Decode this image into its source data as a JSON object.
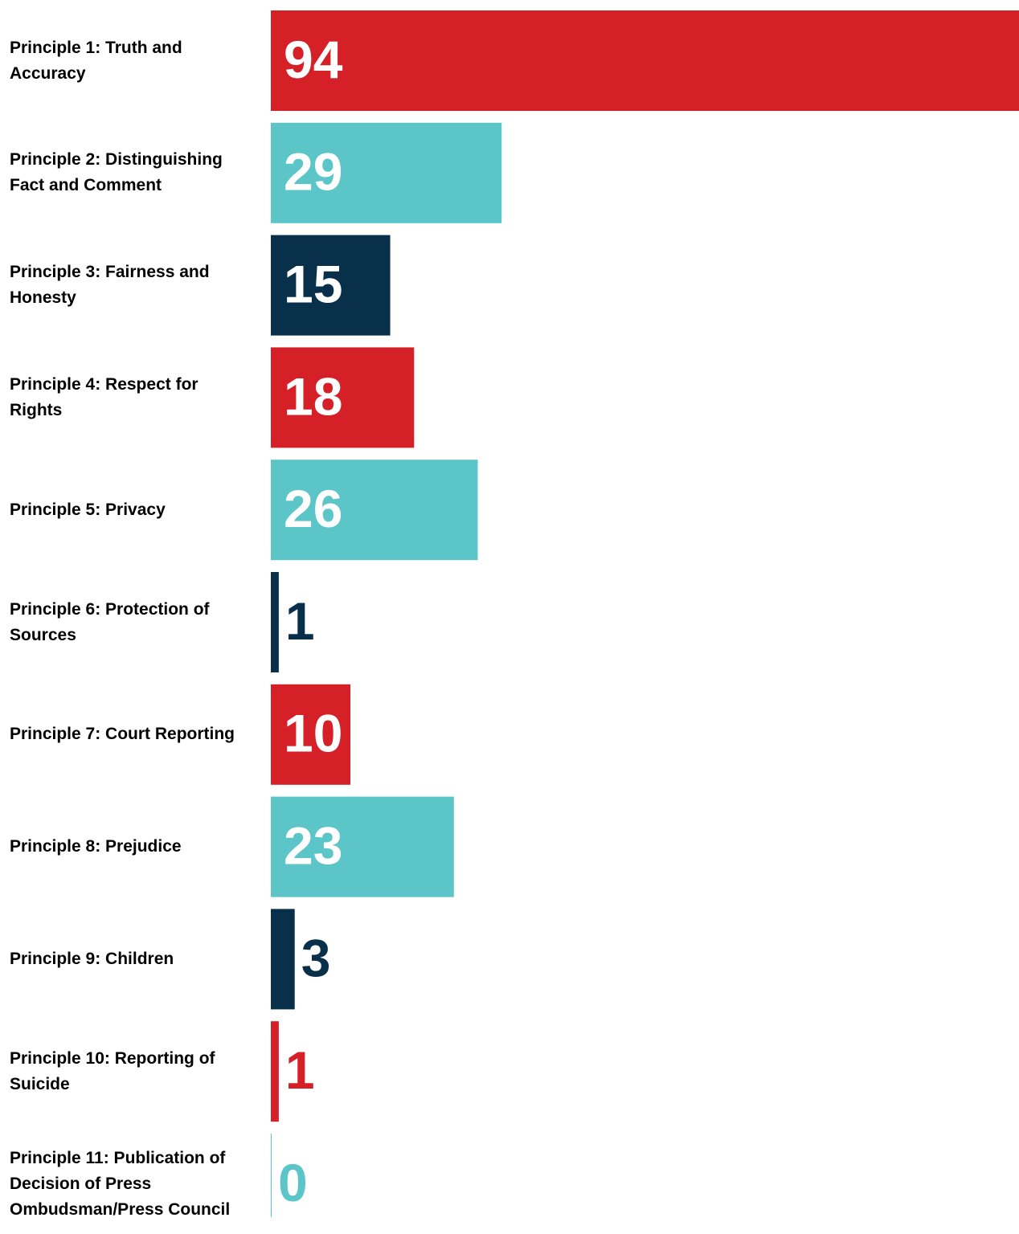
{
  "chart_data": {
    "type": "bar",
    "orientation": "horizontal",
    "categories": [
      "Principle 1: Truth and Accuracy",
      "Principle 2: Distinguishing Fact and Comment",
      "Principle 3: Fairness and Honesty",
      "Principle 4: Respect for Rights",
      "Principle 5: Privacy",
      "Principle 6: Protection of Sources",
      "Principle 7: Court Reporting",
      "Principle 8: Prejudice",
      "Principle 9: Children",
      "Principle 10: Reporting of Suicide",
      "Principle 11: Publication of Decision of Press Ombudsman/Press Council"
    ],
    "values": [
      94,
      29,
      15,
      18,
      26,
      1,
      10,
      23,
      3,
      1,
      0
    ],
    "colors": [
      "#d62028",
      "#5bc5c8",
      "#08304a",
      "#d62028",
      "#5bc5c8",
      "#08304a",
      "#d62028",
      "#5bc5c8",
      "#08304a",
      "#d62028",
      "#5bc5c8"
    ],
    "xlim": [
      0,
      94
    ]
  }
}
